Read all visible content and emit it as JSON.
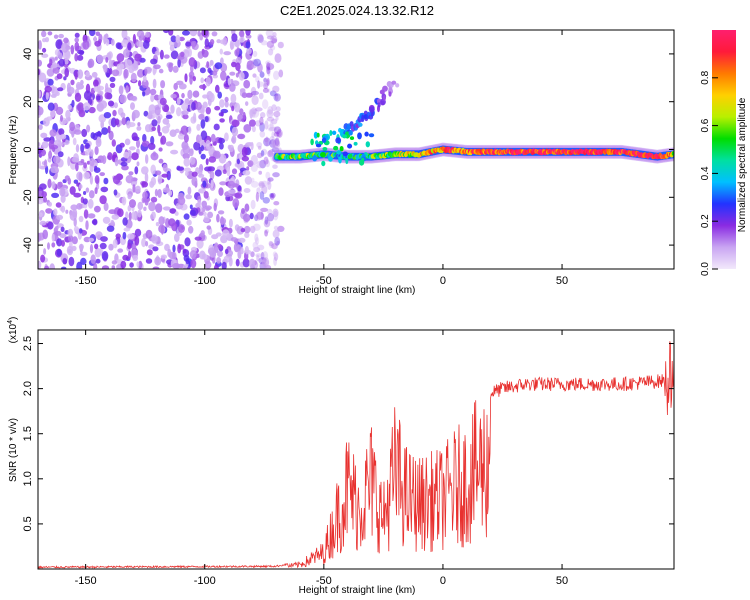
{
  "title": "C2E1.2025.024.13.32.R12",
  "chart_data": [
    {
      "type": "heatmap",
      "xlabel": "Height of straight line (km)",
      "ylabel": "Frequency (Hz)",
      "xlim": [
        -170,
        97
      ],
      "ylim": [
        -50,
        50
      ],
      "xticks": [
        -150,
        -100,
        -50,
        0,
        50
      ],
      "yticks": [
        -40,
        -20,
        0,
        20,
        40
      ],
      "colorbar": {
        "label": "Normalized spectral amplitude",
        "range": [
          0,
          1
        ],
        "ticks": [
          0.0,
          0.2,
          0.4,
          0.6,
          0.8
        ],
        "colors": [
          "#f2e9fb",
          "#c9a5f2",
          "#8a2be2",
          "#2233ff",
          "#00c0ff",
          "#00e0a0",
          "#00dd00",
          "#b8f000",
          "#ffd000",
          "#ff7a00",
          "#ff1a3a",
          "#ff1f6e"
        ]
      },
      "noise_region_x": [
        -170,
        -68
      ],
      "main_trace": [
        {
          "x": -70,
          "y": -3,
          "amp": 0.5
        },
        {
          "x": -60,
          "y": -3,
          "amp": 0.6
        },
        {
          "x": -50,
          "y": -2,
          "amp": 0.5
        },
        {
          "x": -40,
          "y": -3,
          "amp": 0.4
        },
        {
          "x": -30,
          "y": -3,
          "amp": 0.5
        },
        {
          "x": -20,
          "y": -2,
          "amp": 0.6
        },
        {
          "x": -10,
          "y": -2,
          "amp": 0.7
        },
        {
          "x": 0,
          "y": 0,
          "amp": 0.85
        },
        {
          "x": 10,
          "y": -1,
          "amp": 0.85
        },
        {
          "x": 25,
          "y": -1,
          "amp": 0.9
        },
        {
          "x": 50,
          "y": -1,
          "amp": 0.95
        },
        {
          "x": 75,
          "y": -1,
          "amp": 0.95
        },
        {
          "x": 90,
          "y": -3,
          "amp": 1.0
        },
        {
          "x": 97,
          "y": -2,
          "amp": 0.7
        }
      ],
      "branch_trace": [
        {
          "x": -45,
          "y": 5,
          "amp": 0.4
        },
        {
          "x": -38,
          "y": 10,
          "amp": 0.3
        },
        {
          "x": -30,
          "y": 16,
          "amp": 0.3
        },
        {
          "x": -25,
          "y": 22,
          "amp": 0.2
        },
        {
          "x": -20,
          "y": 27,
          "amp": 0.1
        }
      ]
    },
    {
      "type": "line",
      "xlabel": "Height of straight line (km)",
      "ylabel": "SNR (10 * v/v)",
      "y_multiplier": "(x10",
      "y_multiplier_exp": "4",
      "y_multiplier_close": ")",
      "xlim": [
        -170,
        97
      ],
      "ylim": [
        0,
        2.65
      ],
      "xticks": [
        -150,
        -100,
        -50,
        0,
        50
      ],
      "yticks": [
        0.5,
        1.0,
        1.5,
        2.0,
        2.5
      ],
      "line_color": "#e8312f",
      "envelope": [
        {
          "x": -170,
          "y": 0.02
        },
        {
          "x": -70,
          "y": 0.03
        },
        {
          "x": -60,
          "y": 0.08
        },
        {
          "x": -50,
          "y": 0.3
        },
        {
          "x": -45,
          "y": 0.9
        },
        {
          "x": -40,
          "y": 1.5
        },
        {
          "x": -35,
          "y": 1.1
        },
        {
          "x": -30,
          "y": 1.6
        },
        {
          "x": -25,
          "y": 0.9
        },
        {
          "x": -20,
          "y": 1.8
        },
        {
          "x": -15,
          "y": 1.3
        },
        {
          "x": -10,
          "y": 1.2
        },
        {
          "x": -5,
          "y": 1.25
        },
        {
          "x": 0,
          "y": 1.3
        },
        {
          "x": 5,
          "y": 1.5
        },
        {
          "x": 10,
          "y": 1.6
        },
        {
          "x": 15,
          "y": 1.85
        },
        {
          "x": 20,
          "y": 1.95
        },
        {
          "x": 25,
          "y": 2.0
        },
        {
          "x": 35,
          "y": 2.05
        },
        {
          "x": 50,
          "y": 2.05
        },
        {
          "x": 75,
          "y": 2.05
        },
        {
          "x": 90,
          "y": 2.08
        },
        {
          "x": 97,
          "y": 2.1
        }
      ]
    }
  ]
}
